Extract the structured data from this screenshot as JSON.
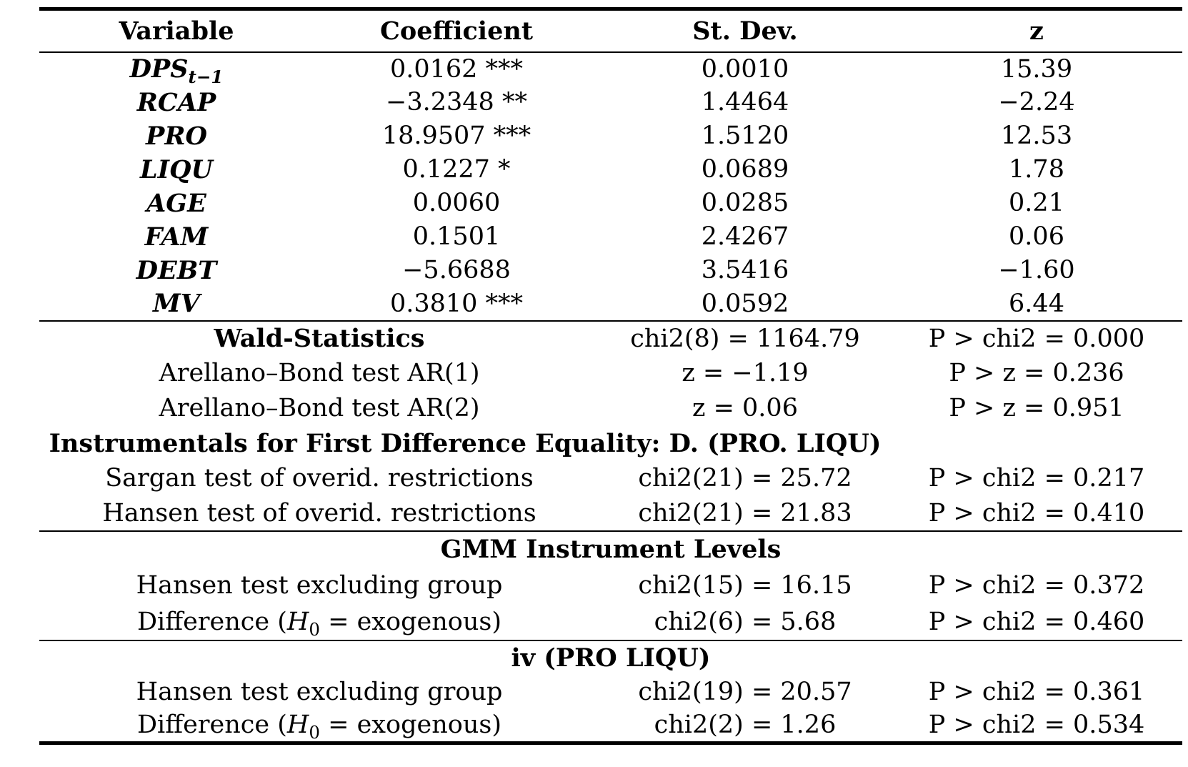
{
  "colors": {
    "text": "#000000",
    "background": "#ffffff",
    "rule": "#000000"
  },
  "table": {
    "header": {
      "columns": [
        "Variable",
        "Coefficient",
        "St. Dev.",
        "z"
      ]
    },
    "coefficients": [
      {
        "name": "DPS",
        "subscript": "t−1",
        "coefficient": "0.0162 ***",
        "st_dev": "0.0010",
        "z": "15.39"
      },
      {
        "name": "RCAP",
        "subscript": "",
        "coefficient": "−3.2348 **",
        "st_dev": "1.4464",
        "z": "−2.24"
      },
      {
        "name": "PRO",
        "subscript": "",
        "coefficient": "18.9507 ***",
        "st_dev": "1.5120",
        "z": "12.53"
      },
      {
        "name": "LIQU",
        "subscript": "",
        "coefficient": "0.1227 *",
        "st_dev": "0.0689",
        "z": "1.78"
      },
      {
        "name": "AGE",
        "subscript": "",
        "coefficient": "0.0060",
        "st_dev": "0.0285",
        "z": "0.21"
      },
      {
        "name": "FAM",
        "subscript": "",
        "coefficient": "0.1501",
        "st_dev": "2.4267",
        "z": "0.06"
      },
      {
        "name": "DEBT",
        "subscript": "",
        "coefficient": "−5.6688",
        "st_dev": "3.5416",
        "z": "−1.60"
      },
      {
        "name": "MV",
        "subscript": "",
        "coefficient": "0.3810 ***",
        "st_dev": "0.0592",
        "z": "6.44"
      }
    ],
    "diagnostics": {
      "rows": [
        {
          "label": "Wald-Statistics",
          "bold": true,
          "stat": "chi2(8) = 1164.79",
          "p": "P > chi2 = 0.000"
        },
        {
          "label": "Arellano–Bond test AR(1)",
          "stat": "z = −1.19",
          "p": "P > z = 0.236"
        },
        {
          "label": "Arellano–Bond test AR(2)",
          "stat": "z = 0.06",
          "p": "P > z = 0.951"
        },
        {
          "type": "span_header",
          "label": "Instrumentals for First Difference Equality: D. (PRO. LIQU)"
        },
        {
          "label": "Sargan test of overid. restrictions",
          "stat": "chi2(21) = 25.72",
          "p": "P > chi2 = 0.217"
        },
        {
          "label": "Hansen test of overid. restrictions",
          "stat": "chi2(21) = 21.83",
          "p": "P > chi2 = 0.410"
        }
      ]
    },
    "gmm_levels": {
      "title": "GMM Instrument Levels",
      "rows": [
        {
          "label": "Hansen test excluding group",
          "stat": "chi2(15) = 16.15",
          "p": "P > chi2 = 0.372"
        },
        {
          "label_prefix": "Difference (",
          "label_var": "H",
          "label_sub": "0",
          "label_suffix": " = exogenous)",
          "stat": "chi2(6) = 5.68",
          "p": "P > chi2 = 0.460"
        }
      ]
    },
    "iv": {
      "title": "iv (PRO LIQU)",
      "rows": [
        {
          "label": "Hansen test excluding group",
          "stat": "chi2(19) = 20.57",
          "p": "P > chi2 = 0.361"
        },
        {
          "label_prefix": "Difference (",
          "label_var": "H",
          "label_sub": "0",
          "label_suffix": " = exogenous)",
          "stat": "chi2(2) = 1.26",
          "p": "P > chi2 = 0.534"
        }
      ]
    }
  }
}
